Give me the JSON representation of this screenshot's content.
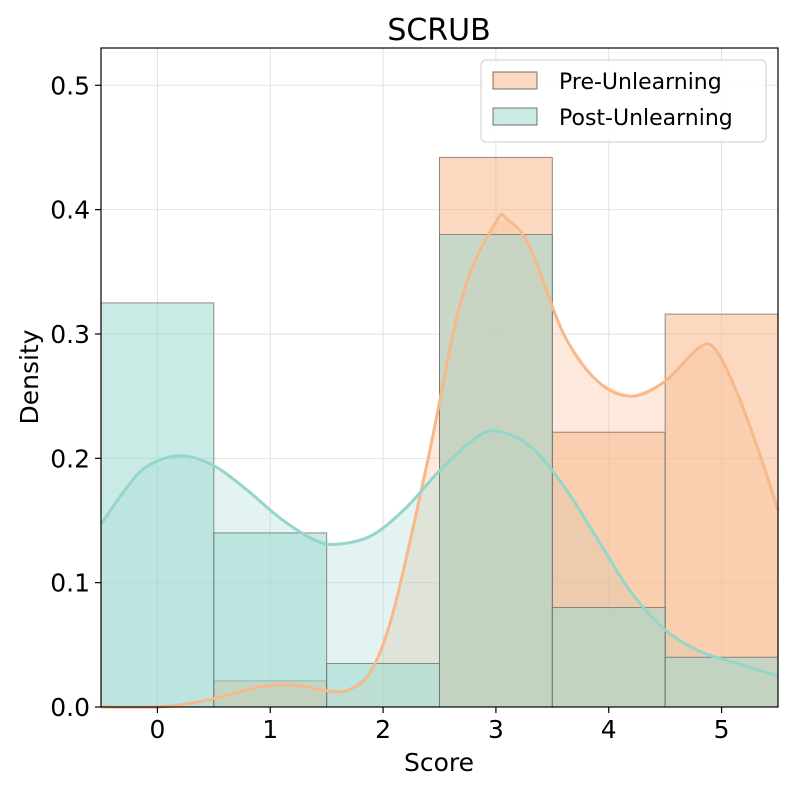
{
  "chart_data": {
    "type": "bar",
    "title": "SCRUB",
    "xlabel": "Score",
    "ylabel": "Density",
    "categories": [
      "0",
      "1",
      "2",
      "3",
      "4",
      "5"
    ],
    "x": [
      0,
      1,
      2,
      3,
      4,
      5
    ],
    "xlim": [
      -0.5,
      5.5
    ],
    "ylim": [
      0,
      0.53
    ],
    "yticks": [
      0.0,
      0.1,
      0.2,
      0.3,
      0.4,
      0.5
    ],
    "ytick_labels": [
      "0.0",
      "0.1",
      "0.2",
      "0.3",
      "0.4",
      "0.5"
    ],
    "grid": true,
    "legend_position": "top-right",
    "series": [
      {
        "name": "Pre-Unlearning",
        "color": "#f7b88a",
        "kde_color": "#f7b88a",
        "values": [
          0.0,
          0.021,
          0.0,
          0.442,
          0.221,
          0.316
        ],
        "kde": [
          [
            -0.5,
            0.0
          ],
          [
            0.0,
            0.0
          ],
          [
            0.3,
            0.003
          ],
          [
            0.6,
            0.009
          ],
          [
            0.9,
            0.016
          ],
          [
            1.2,
            0.018
          ],
          [
            1.5,
            0.013
          ],
          [
            1.7,
            0.014
          ],
          [
            1.9,
            0.03
          ],
          [
            2.1,
            0.08
          ],
          [
            2.4,
            0.2
          ],
          [
            2.7,
            0.33
          ],
          [
            3.0,
            0.39
          ],
          [
            3.1,
            0.392
          ],
          [
            3.3,
            0.37
          ],
          [
            3.6,
            0.3
          ],
          [
            3.9,
            0.262
          ],
          [
            4.2,
            0.25
          ],
          [
            4.5,
            0.262
          ],
          [
            4.8,
            0.289
          ],
          [
            4.95,
            0.287
          ],
          [
            5.15,
            0.25
          ],
          [
            5.35,
            0.2
          ],
          [
            5.5,
            0.158
          ]
        ]
      },
      {
        "name": "Post-Unlearning",
        "color": "#9ed8d0",
        "kde_color": "#94d6cb",
        "values": [
          0.325,
          0.14,
          0.035,
          0.38,
          0.08,
          0.04
        ],
        "kde": [
          [
            -0.5,
            0.147
          ],
          [
            -0.3,
            0.173
          ],
          [
            -0.1,
            0.193
          ],
          [
            0.2,
            0.202
          ],
          [
            0.5,
            0.194
          ],
          [
            0.8,
            0.174
          ],
          [
            1.1,
            0.151
          ],
          [
            1.4,
            0.134
          ],
          [
            1.6,
            0.131
          ],
          [
            1.9,
            0.138
          ],
          [
            2.2,
            0.16
          ],
          [
            2.5,
            0.19
          ],
          [
            2.8,
            0.215
          ],
          [
            3.0,
            0.222
          ],
          [
            3.3,
            0.21
          ],
          [
            3.6,
            0.178
          ],
          [
            3.9,
            0.135
          ],
          [
            4.2,
            0.092
          ],
          [
            4.5,
            0.062
          ],
          [
            4.8,
            0.045
          ],
          [
            5.1,
            0.036
          ],
          [
            5.5,
            0.025
          ]
        ]
      }
    ]
  }
}
